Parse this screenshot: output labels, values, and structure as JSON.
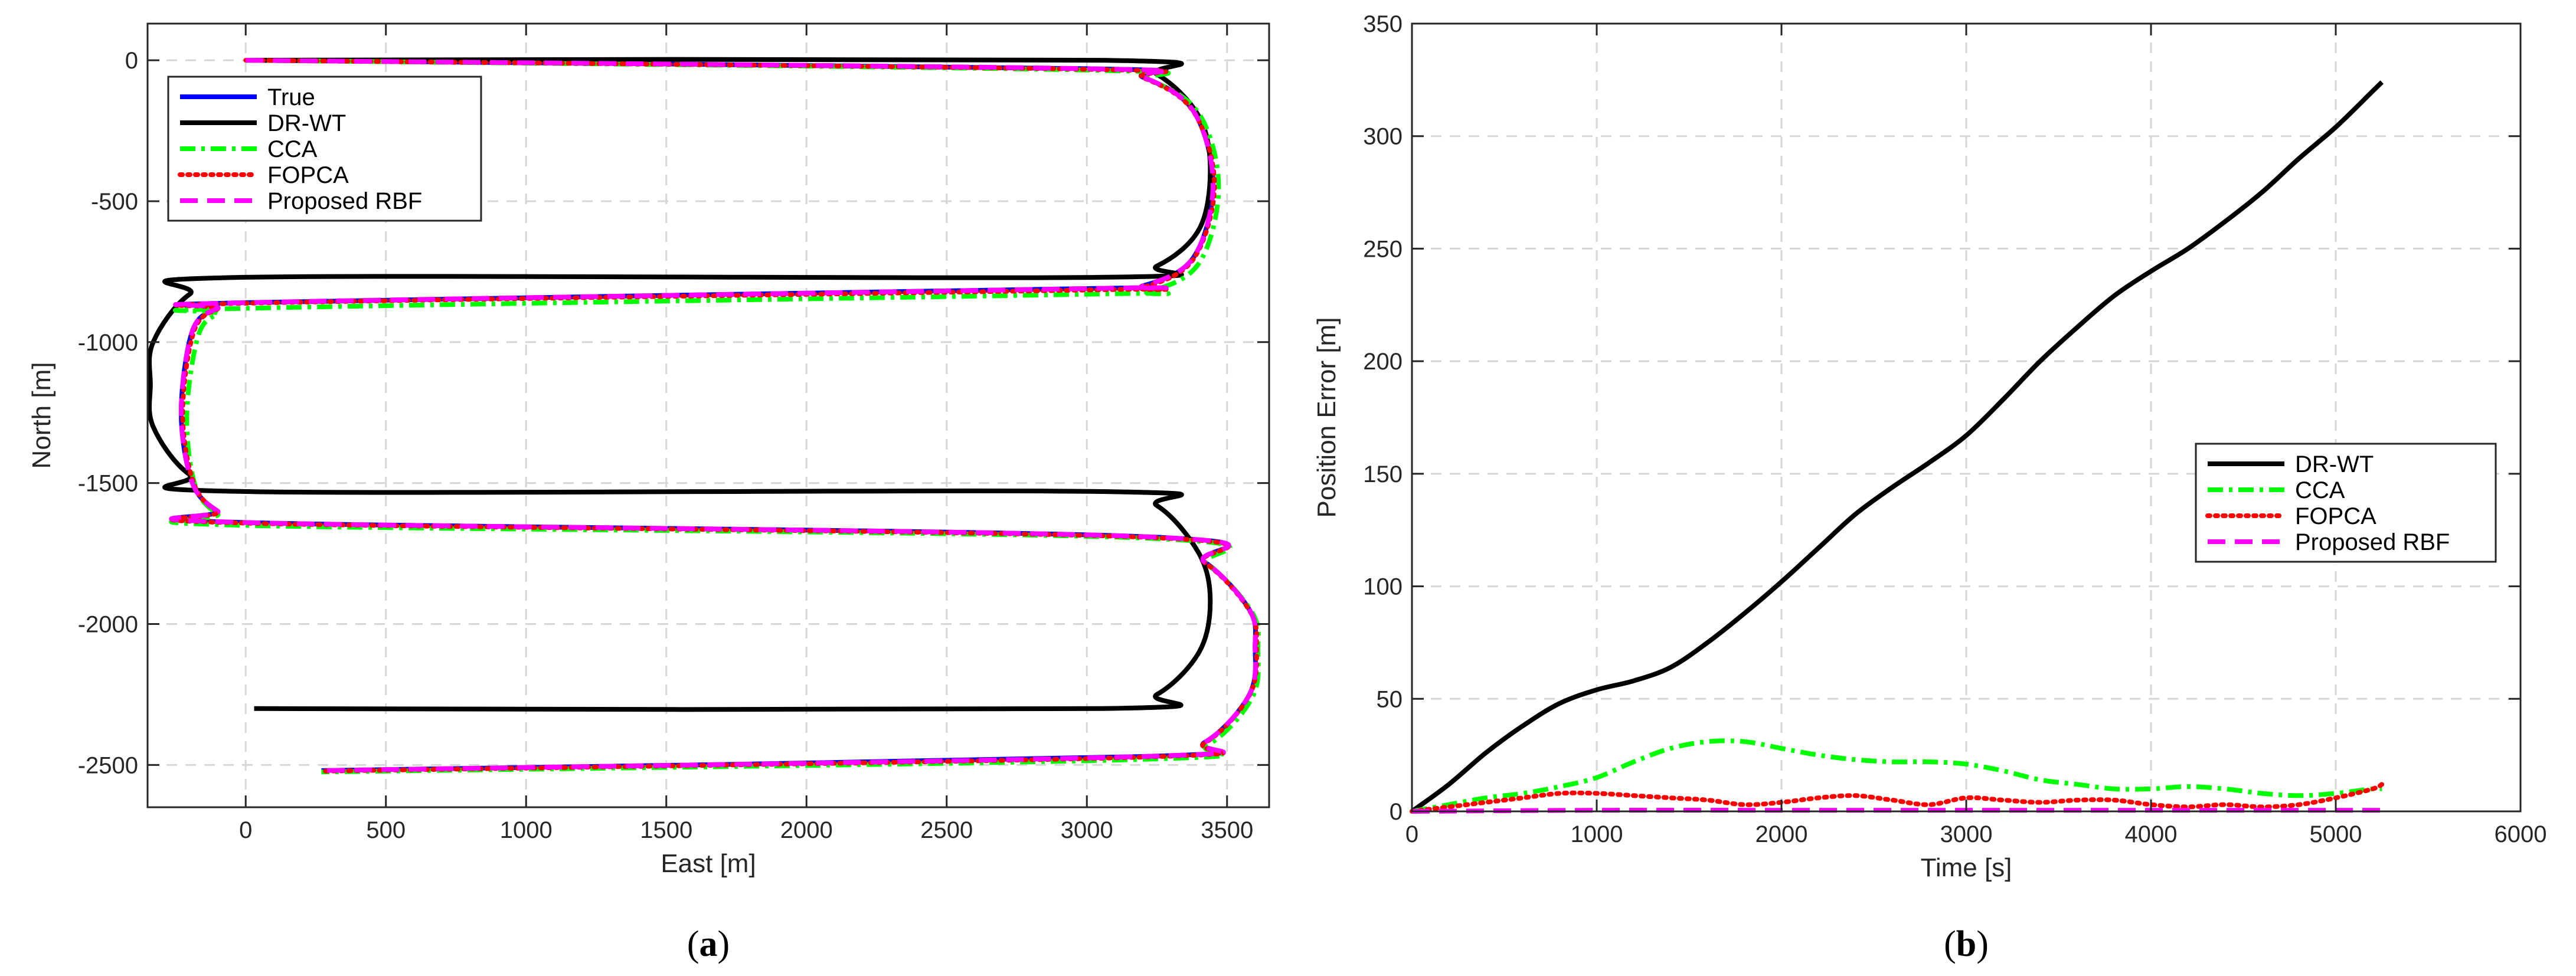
{
  "chart_data": [
    {
      "type": "line",
      "xlabel": "East [m]",
      "ylabel": "North [m]",
      "xlim": [
        -350,
        3650
      ],
      "ylim": [
        -2650,
        130
      ],
      "xticks": [
        0,
        500,
        1000,
        1500,
        2000,
        2500,
        3000,
        3500
      ],
      "yticks": [
        0,
        -500,
        -1000,
        -1500,
        -2000,
        -2500
      ],
      "grid": true,
      "legend_position": "top-left",
      "caption": "(a)",
      "series": [
        {
          "name": "True",
          "color": "#0000ff",
          "style": "solid",
          "x": [
            0,
            3000,
            3200,
            3380,
            3450,
            3380,
            3200,
            3000,
            0,
            -100,
            -190,
            -230,
            -190,
            -100,
            0,
            3200,
            3420,
            3580,
            3600,
            3580,
            3420,
            3200,
            270
          ],
          "y": [
            0,
            -30,
            -60,
            -180,
            -440,
            -700,
            -800,
            -810,
            -860,
            -880,
            -960,
            -1250,
            -1500,
            -1600,
            -1640,
            -1690,
            -1780,
            -1950,
            -2080,
            -2250,
            -2420,
            -2470,
            -2520
          ]
        },
        {
          "name": "DR-WT",
          "color": "#000000",
          "style": "solid",
          "x": [
            0,
            3050,
            3250,
            3400,
            3440,
            3400,
            3250,
            3050,
            0,
            -200,
            -330,
            -340,
            -330,
            -200,
            0,
            3050,
            3250,
            3400,
            3440,
            3400,
            3250,
            3050,
            30
          ],
          "y": [
            0,
            0,
            -50,
            -200,
            -390,
            -600,
            -730,
            -770,
            -770,
            -830,
            -1000,
            -1150,
            -1300,
            -1470,
            -1530,
            -1530,
            -1580,
            -1750,
            -1920,
            -2100,
            -2250,
            -2300,
            -2300
          ]
        },
        {
          "name": "CCA",
          "color": "#00ff00",
          "style": "dashdot",
          "x": [
            0,
            3000,
            3220,
            3400,
            3470,
            3400,
            3220,
            3000,
            0,
            -100,
            -170,
            -210,
            -180,
            -100,
            0,
            3200,
            3430,
            3590,
            3610,
            3590,
            3430,
            3200,
            270
          ],
          "y": [
            0,
            -35,
            -70,
            -190,
            -450,
            -720,
            -820,
            -830,
            -880,
            -900,
            -980,
            -1260,
            -1510,
            -1610,
            -1650,
            -1695,
            -1790,
            -1960,
            -2090,
            -2260,
            -2430,
            -2480,
            -2525
          ]
        },
        {
          "name": "FOPCA",
          "color": "#ff0000",
          "style": "dotted",
          "x": [
            0,
            3000,
            3200,
            3380,
            3455,
            3380,
            3200,
            3000,
            0,
            -100,
            -185,
            -225,
            -185,
            -100,
            0,
            3200,
            3420,
            3580,
            3605,
            3580,
            3420,
            3200,
            270
          ],
          "y": [
            0,
            -32,
            -62,
            -182,
            -442,
            -705,
            -805,
            -815,
            -862,
            -882,
            -962,
            -1252,
            -1502,
            -1602,
            -1642,
            -1692,
            -1782,
            -1952,
            -2082,
            -2252,
            -2422,
            -2472,
            -2522
          ]
        },
        {
          "name": "Proposed RBF",
          "color": "#ff00ff",
          "style": "dashed",
          "x": [
            0,
            3000,
            3200,
            3380,
            3450,
            3380,
            3200,
            3000,
            0,
            -100,
            -190,
            -230,
            -190,
            -100,
            0,
            3200,
            3420,
            3580,
            3600,
            3580,
            3420,
            3200,
            270
          ],
          "y": [
            0,
            -30,
            -60,
            -180,
            -440,
            -700,
            -800,
            -810,
            -860,
            -880,
            -960,
            -1250,
            -1500,
            -1600,
            -1640,
            -1690,
            -1780,
            -1950,
            -2080,
            -2250,
            -2420,
            -2470,
            -2520
          ]
        }
      ]
    },
    {
      "type": "line",
      "xlabel": "Time [s]",
      "ylabel": "Position Error [m]",
      "xlim": [
        0,
        6000
      ],
      "ylim": [
        0,
        350
      ],
      "xticks": [
        0,
        1000,
        2000,
        3000,
        4000,
        5000,
        6000
      ],
      "yticks": [
        0,
        50,
        100,
        150,
        200,
        250,
        300,
        350
      ],
      "grid": true,
      "legend_position": "right",
      "caption": "(b)",
      "series": [
        {
          "name": "DR-WT",
          "color": "#000000",
          "style": "solid",
          "x": [
            0,
            200,
            400,
            600,
            800,
            1000,
            1200,
            1400,
            1600,
            1800,
            2000,
            2200,
            2400,
            2600,
            2800,
            3000,
            3200,
            3400,
            3600,
            3800,
            4000,
            4200,
            4400,
            4600,
            4800,
            5000,
            5200,
            5250
          ],
          "y": [
            0,
            12,
            26,
            38,
            48,
            54,
            58,
            64,
            75,
            88,
            102,
            117,
            132,
            144,
            155,
            167,
            183,
            200,
            215,
            229,
            240,
            250,
            262,
            275,
            290,
            304,
            320,
            324
          ]
        },
        {
          "name": "CCA",
          "color": "#00ff00",
          "style": "dashdot",
          "x": [
            0,
            200,
            400,
            600,
            800,
            1000,
            1200,
            1400,
            1600,
            1800,
            2000,
            2200,
            2400,
            2600,
            2800,
            3000,
            3200,
            3400,
            3600,
            3800,
            4000,
            4200,
            4400,
            4600,
            4800,
            5000,
            5200,
            5250
          ],
          "y": [
            0,
            3,
            6,
            8,
            11,
            15,
            22,
            28,
            31,
            31,
            28,
            25,
            23,
            22,
            22,
            21,
            18,
            14,
            12,
            10,
            10,
            11,
            10,
            8,
            7,
            8,
            10,
            10
          ]
        },
        {
          "name": "FOPCA",
          "color": "#ff0000",
          "style": "dotted",
          "x": [
            0,
            200,
            400,
            600,
            800,
            1000,
            1200,
            1400,
            1600,
            1800,
            2000,
            2200,
            2400,
            2600,
            2800,
            3000,
            3200,
            3400,
            3600,
            3800,
            4000,
            4200,
            4400,
            4600,
            4800,
            5000,
            5200,
            5250
          ],
          "y": [
            0,
            2,
            4,
            6,
            8,
            8,
            7,
            6,
            5,
            3,
            4,
            6,
            7,
            5,
            3,
            6,
            5,
            4,
            5,
            5,
            3,
            2,
            3,
            2,
            3,
            6,
            10,
            12
          ]
        },
        {
          "name": "Proposed RBF",
          "color": "#ff00ff",
          "style": "dashed",
          "x": [
            0,
            1000,
            2000,
            3000,
            4000,
            5000,
            5250
          ],
          "y": [
            0,
            0.5,
            0.5,
            0.5,
            0.5,
            0.5,
            0.5
          ]
        }
      ]
    }
  ]
}
